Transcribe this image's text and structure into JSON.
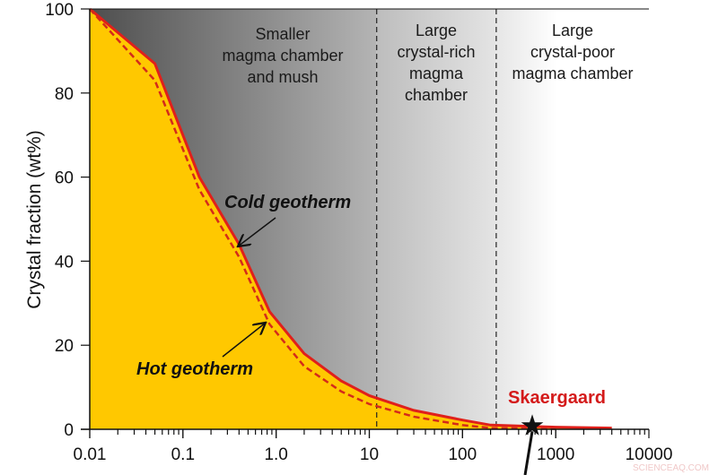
{
  "chart_data": {
    "type": "line",
    "xscale": "log",
    "xlim": [
      0.01,
      10000
    ],
    "ylim": [
      0,
      100
    ],
    "ylabel": "Crystal fraction (wt%)",
    "xticks": [
      "0.01",
      "0.1",
      "1.0",
      "10",
      "100",
      "1000",
      "10000"
    ],
    "yticks": [
      "0",
      "20",
      "40",
      "60",
      "80",
      "100"
    ],
    "grid": false,
    "series": [
      {
        "name": "Cold geotherm",
        "style": "solid",
        "color": "#e0201b",
        "x": [
          0.01,
          0.05,
          0.15,
          0.4,
          0.85,
          2,
          5,
          10,
          30,
          100,
          200,
          1000,
          4000
        ],
        "y": [
          100,
          87,
          60,
          44,
          28,
          18,
          11.5,
          8,
          4.5,
          2.2,
          1,
          0.5,
          0.3
        ]
      },
      {
        "name": "Hot geotherm",
        "style": "dashed",
        "color": "#d42a1a",
        "x": [
          0.01,
          0.05,
          0.15,
          0.4,
          0.85,
          2,
          5,
          10,
          30,
          100,
          200,
          1000
        ],
        "y": [
          100,
          83,
          57,
          41,
          25,
          15,
          9,
          6,
          3,
          1,
          0.3,
          0.1
        ]
      }
    ],
    "regions": [
      {
        "label": [
          "Smaller",
          "magma chamber",
          "and mush"
        ],
        "from": 0.01,
        "to": 12
      },
      {
        "label": [
          "Large",
          "crystal-rich",
          "magma",
          "chamber"
        ],
        "from": 12,
        "to": 230
      },
      {
        "label": [
          "Large",
          "crystal-poor",
          "magma chamber"
        ],
        "from": 230,
        "to": 10000
      }
    ],
    "boundaries": [
      12,
      230
    ],
    "annotations": {
      "cold": "Cold geotherm",
      "hot": "Hot geotherm",
      "point_label": "Skaergaard",
      "point": {
        "x": 560,
        "y": 0.8
      }
    },
    "colors": {
      "fill": "#ffc800",
      "label_red": "#d41a1a"
    }
  },
  "watermark": "SCIENCEAQ.COM"
}
